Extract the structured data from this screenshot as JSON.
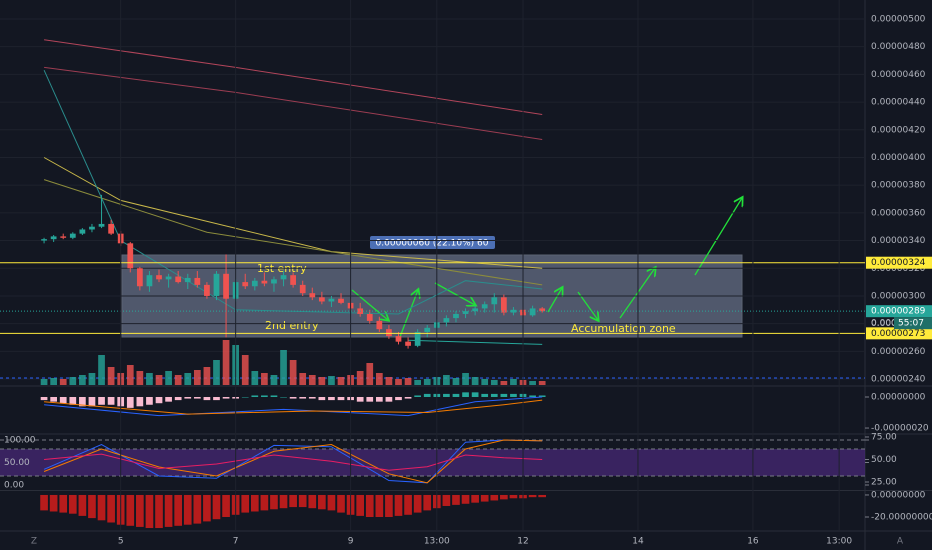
{
  "chart_data": [
    {
      "type": "candlestick",
      "xlim": [
        -4.6,
        85.7
      ],
      "xticks": [
        {
          "value": 8,
          "label": "5"
        },
        {
          "value": 20,
          "label": "7"
        },
        {
          "value": 32,
          "label": "9"
        },
        {
          "value": 41,
          "label": "13:00"
        },
        {
          "value": 50,
          "label": "12"
        },
        {
          "value": 62,
          "label": "14"
        },
        {
          "value": 74,
          "label": "16"
        },
        {
          "value": 83,
          "label": "13:00"
        }
      ],
      "ylim": [
        2.357e-06,
        5.137e-06
      ],
      "yticks": [
        {
          "value": 2.4e-06,
          "label": "0.00000240"
        },
        {
          "value": 2.6e-06,
          "label": "0.00000260"
        },
        {
          "value": 2.8e-06,
          "label": "0.00000280"
        },
        {
          "value": 3e-06,
          "label": "0.00000300"
        },
        {
          "value": 3.2e-06,
          "label": "0.00000320"
        },
        {
          "value": 3.4e-06,
          "label": "0.00000340"
        },
        {
          "value": 3.6e-06,
          "label": "0.00000360"
        },
        {
          "value": 3.8e-06,
          "label": "0.00000380"
        },
        {
          "value": 4e-06,
          "label": "0.00000400"
        },
        {
          "value": 4.2e-06,
          "label": "0.00000420"
        },
        {
          "value": 4.4e-06,
          "label": "0.00000440"
        },
        {
          "value": 4.6e-06,
          "label": "0.00000460"
        },
        {
          "value": 4.8e-06,
          "label": "0.00000480"
        },
        {
          "value": 5e-06,
          "label": "0.00000500"
        }
      ],
      "up_color": "#26a69a",
      "down_color": "#ef5350",
      "candles": [
        [
          3.4e-06,
          3.42e-06,
          3.38e-06,
          3.41e-06
        ],
        [
          3.41e-06,
          3.44e-06,
          3.39e-06,
          3.43e-06
        ],
        [
          3.43e-06,
          3.45e-06,
          3.41e-06,
          3.42e-06
        ],
        [
          3.42e-06,
          3.46e-06,
          3.41e-06,
          3.45e-06
        ],
        [
          3.45e-06,
          3.49e-06,
          3.44e-06,
          3.48e-06
        ],
        [
          3.48e-06,
          3.52e-06,
          3.46e-06,
          3.5e-06
        ],
        [
          3.5e-06,
          3.73e-06,
          3.49e-06,
          3.52e-06
        ],
        [
          3.52e-06,
          3.55e-06,
          3.44e-06,
          3.45e-06
        ],
        [
          3.45e-06,
          3.47e-06,
          3.36e-06,
          3.38e-06
        ],
        [
          3.38e-06,
          3.39e-06,
          3.17e-06,
          3.2e-06
        ],
        [
          3.2e-06,
          3.21e-06,
          3.04e-06,
          3.07e-06
        ],
        [
          3.07e-06,
          3.18e-06,
          3.03e-06,
          3.15e-06
        ],
        [
          3.15e-06,
          3.19e-06,
          3.1e-06,
          3.12e-06
        ],
        [
          3.12e-06,
          3.16e-06,
          3.06e-06,
          3.14e-06
        ],
        [
          3.14e-06,
          3.18e-06,
          3.09e-06,
          3.1e-06
        ],
        [
          3.1e-06,
          3.16e-06,
          3.05e-06,
          3.13e-06
        ],
        [
          3.13e-06,
          3.18e-06,
          3.06e-06,
          3.08e-06
        ],
        [
          3.08e-06,
          3.1e-06,
          2.98e-06,
          3e-06
        ],
        [
          3e-06,
          3.18e-06,
          2.97e-06,
          3.16e-06
        ],
        [
          3.16e-06,
          3.3e-06,
          2.7e-06,
          2.98e-06
        ],
        [
          2.98e-06,
          3.12e-06,
          2.96e-06,
          3.1e-06
        ],
        [
          3.1e-06,
          3.16e-06,
          3.05e-06,
          3.07e-06
        ],
        [
          3.07e-06,
          3.13e-06,
          3.04e-06,
          3.11e-06
        ],
        [
          3.11e-06,
          3.17e-06,
          3.07e-06,
          3.09e-06
        ],
        [
          3.09e-06,
          3.14e-06,
          3.03e-06,
          3.12e-06
        ],
        [
          3.12e-06,
          3.18e-06,
          3.07e-06,
          3.15e-06
        ],
        [
          3.15e-06,
          3.17e-06,
          3.06e-06,
          3.08e-06
        ],
        [
          3.08e-06,
          3.11e-06,
          3e-06,
          3.02e-06
        ],
        [
          3.02e-06,
          3.06e-06,
          2.97e-06,
          2.99e-06
        ],
        [
          2.99e-06,
          3.03e-06,
          2.94e-06,
          2.96e-06
        ],
        [
          2.96e-06,
          3e-06,
          2.92e-06,
          2.98e-06
        ],
        [
          2.98e-06,
          3.02e-06,
          2.94e-06,
          2.95e-06
        ],
        [
          2.95e-06,
          2.98e-06,
          2.89e-06,
          2.91e-06
        ],
        [
          2.91e-06,
          2.95e-06,
          2.85e-06,
          2.87e-06
        ],
        [
          2.87e-06,
          2.9e-06,
          2.8e-06,
          2.82e-06
        ],
        [
          2.82e-06,
          2.85e-06,
          2.74e-06,
          2.76e-06
        ],
        [
          2.76e-06,
          2.79e-06,
          2.69e-06,
          2.71e-06
        ],
        [
          2.71e-06,
          2.74e-06,
          2.65e-06,
          2.67e-06
        ],
        [
          2.67e-06,
          2.7e-06,
          2.62e-06,
          2.64e-06
        ],
        [
          2.64e-06,
          2.76e-06,
          2.63e-06,
          2.74e-06
        ],
        [
          2.74e-06,
          2.79e-06,
          2.7e-06,
          2.77e-06
        ],
        [
          2.77e-06,
          2.83e-06,
          2.74e-06,
          2.81e-06
        ],
        [
          2.81e-06,
          2.86e-06,
          2.78e-06,
          2.84e-06
        ],
        [
          2.84e-06,
          2.89e-06,
          2.81e-06,
          2.87e-06
        ],
        [
          2.87e-06,
          2.91e-06,
          2.84e-06,
          2.89e-06
        ],
        [
          2.89e-06,
          2.93e-06,
          2.86e-06,
          2.91e-06
        ],
        [
          2.91e-06,
          2.96e-06,
          2.88e-06,
          2.94e-06
        ],
        [
          2.94e-06,
          3.02e-06,
          2.88e-06,
          2.99e-06
        ],
        [
          2.99e-06,
          3.01e-06,
          2.86e-06,
          2.88e-06
        ],
        [
          2.88e-06,
          2.92e-06,
          2.86e-06,
          2.9e-06
        ],
        [
          2.9e-06,
          2.92e-06,
          2.85e-06,
          2.86e-06
        ],
        [
          2.86e-06,
          2.93e-06,
          2.85e-06,
          2.91e-06
        ],
        [
          2.91e-06,
          2.92e-06,
          2.88e-06,
          2.89e-06
        ]
      ],
      "volume": {
        "ylim": [
          0,
          50
        ],
        "values": [
          6,
          7,
          6,
          8,
          10,
          12,
          30,
          18,
          12,
          20,
          14,
          12,
          10,
          14,
          10,
          12,
          15,
          18,
          25,
          45,
          40,
          30,
          14,
          12,
          10,
          35,
          25,
          12,
          10,
          8,
          9,
          8,
          10,
          14,
          22,
          12,
          8,
          6,
          7,
          5,
          6,
          8,
          10,
          7,
          12,
          8,
          6,
          5,
          4,
          6,
          5,
          4,
          4
        ]
      },
      "lines": [
        {
          "color": "#b2455a",
          "x": [
            0,
            20,
            52
          ],
          "values": [
            4.85e-06,
            4.65e-06,
            4.31e-06
          ]
        },
        {
          "color": "#9c3d52",
          "x": [
            0,
            20,
            52
          ],
          "values": [
            4.65e-06,
            4.47e-06,
            4.13e-06
          ]
        },
        {
          "color": "#c9b84a",
          "x": [
            0,
            8,
            30,
            52
          ],
          "values": [
            4e-06,
            3.69e-06,
            3.32e-06,
            3.2e-06
          ]
        },
        {
          "color": "#8c8c3c",
          "x": [
            0,
            17,
            52
          ],
          "values": [
            3.84e-06,
            3.46e-06,
            3.08e-06
          ]
        },
        {
          "color": "#2a8c8c",
          "x": [
            0,
            8,
            20,
            37,
            44,
            52
          ],
          "values": [
            4.63e-06,
            3.4e-06,
            2.9e-06,
            2.87e-06,
            3.11e-06,
            3.05e-06
          ]
        },
        {
          "color": "#26a69a",
          "x": [
            38,
            52
          ],
          "values": [
            2.68e-06,
            2.65e-06
          ]
        }
      ],
      "hlines": [
        {
          "value": 3.24e-06,
          "label": "0.00000324",
          "color": "#ffeb3b"
        },
        {
          "value": 2.73e-06,
          "label": "0.00000273",
          "color": "#ffeb3b"
        }
      ],
      "last_price": {
        "value": 2.89e-06,
        "label": "0.00000289",
        "under": "0.00000",
        "countdown": "55:07",
        "color": "#26a69a"
      },
      "annotations": {
        "measure": "0.00000060 (22.10%) 60",
        "first": "1st entry",
        "second": "2nd entry",
        "zone": "Accumulation zone"
      }
    },
    {
      "type": "macd",
      "ylim": [
        -2.32e-07,
        6.45e-08
      ],
      "yticks": [
        {
          "value": 0,
          "label": "0.00000000"
        },
        {
          "value": -2e-07,
          "label": "-0.00000020"
        }
      ],
      "hist": [
        -2e-08,
        -3e-08,
        -4e-08,
        -5e-08,
        -6e-08,
        -6e-08,
        -5e-08,
        -5e-08,
        -6e-08,
        -7e-08,
        -6e-08,
        -5e-08,
        -4e-08,
        -3e-08,
        -2e-08,
        -1e-08,
        -1e-08,
        -2e-08,
        -2e-08,
        -1e-08,
        -1e-08,
        0,
        1e-08,
        1e-08,
        1e-08,
        0,
        -1e-08,
        -1e-08,
        -1e-08,
        -2e-08,
        -2e-08,
        -2e-08,
        -2e-08,
        -3e-08,
        -3e-08,
        -3e-08,
        -3e-08,
        -2e-08,
        -1e-08,
        1e-08,
        2e-08,
        2e-08,
        2e-08,
        2e-08,
        3e-08,
        3e-08,
        2e-08,
        2e-08,
        2e-08,
        2e-08,
        2e-08,
        1e-08,
        1e-08
      ],
      "pos_color": "#26a69a",
      "neg_color": "#f8bbd0",
      "lines": [
        {
          "color": "#2962ff",
          "x": [
            0,
            12,
            25,
            38,
            45,
            52
          ],
          "values": [
            -5e-08,
            -1.2e-07,
            -8e-08,
            -1.2e-07,
            -3e-08,
            0
          ]
        },
        {
          "color": "#f57c00",
          "x": [
            0,
            15,
            28,
            40,
            48,
            52
          ],
          "values": [
            -3e-08,
            -1.1e-07,
            -9e-08,
            -1e-07,
            -5e-08,
            -2e-08
          ]
        }
      ]
    },
    {
      "type": "stoch",
      "ylim": [
        -13.3,
        111.1
      ],
      "yticks": [
        {
          "value": 100,
          "label": "100.00"
        },
        {
          "value": 50,
          "label": "50.00"
        },
        {
          "value": 0,
          "label": "0.00"
        }
      ],
      "y2lim": [
        15,
        77.2
      ],
      "y2ticks": [
        {
          "value": 75,
          "label": "75.00"
        },
        {
          "value": 50,
          "label": "50.00"
        },
        {
          "value": 25,
          "label": "25.00"
        }
      ],
      "series": [
        {
          "color": "#2962ff",
          "x": [
            0,
            6,
            12,
            18,
            24,
            30,
            36,
            40,
            44,
            48,
            52
          ],
          "values": [
            35,
            90,
            20,
            15,
            88,
            85,
            10,
            5,
            95,
            100,
            98
          ]
        },
        {
          "color": "#f57c00",
          "x": [
            0,
            6,
            12,
            18,
            24,
            30,
            36,
            40,
            44,
            48,
            52
          ],
          "values": [
            30,
            80,
            40,
            20,
            75,
            90,
            25,
            5,
            80,
            100,
            98
          ]
        },
        {
          "color": "#e91e63",
          "axis": "y2",
          "x": [
            0,
            6,
            12,
            18,
            24,
            30,
            36,
            40,
            44,
            48,
            52
          ],
          "values": [
            50,
            56,
            40,
            45,
            55,
            48,
            38,
            42,
            55,
            52,
            50
          ]
        }
      ]
    },
    {
      "type": "histogram",
      "ylim": [
        -31.8,
        3.6
      ],
      "yticks": [
        {
          "value": 0,
          "label": "0.00000000"
        },
        {
          "value": -20,
          "label": "-20.00000000"
        }
      ],
      "color": "#b71c1c",
      "values": [
        -14,
        -15,
        -16,
        -17,
        -19,
        -21,
        -23,
        -25,
        -27,
        -28,
        -29,
        -30,
        -30,
        -29,
        -28,
        -27,
        -26,
        -24,
        -22,
        -20,
        -18,
        -16,
        -15,
        -14,
        -13,
        -12,
        -11,
        -11,
        -12,
        -13,
        -14,
        -16,
        -18,
        -19,
        -20,
        -20,
        -20,
        -19,
        -18,
        -16,
        -14,
        -12,
        -10,
        -9,
        -8,
        -7,
        -6,
        -5,
        -4,
        -3,
        -3,
        -2,
        -2
      ]
    }
  ],
  "ui": {
    "left_corner": "Z",
    "right_corner": "A"
  }
}
